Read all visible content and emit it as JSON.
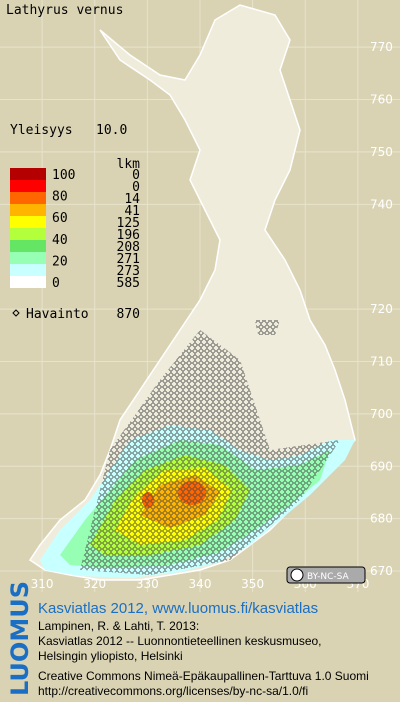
{
  "header": {
    "species": "Lathyrus vernus",
    "frequency_label": "Yleisyys",
    "frequency": "10.0"
  },
  "map": {
    "xlim": [
      302,
      378
    ],
    "ylim": [
      666,
      779
    ],
    "xticks": [
      310,
      320,
      330,
      340,
      350,
      360,
      370
    ],
    "yticks": [
      670,
      680,
      690,
      700,
      710,
      720,
      740,
      750,
      760,
      770
    ]
  },
  "legend": {
    "scale_labels": [
      "100",
      "80",
      "60",
      "40",
      "20",
      "0"
    ],
    "count_header": "lkm",
    "classes": [
      {
        "color": "#b40000",
        "count": 0
      },
      {
        "color": "#ff0000",
        "count": 0
      },
      {
        "color": "#ff6600",
        "count": 14
      },
      {
        "color": "#ffb400",
        "count": 41
      },
      {
        "color": "#ffff00",
        "count": 125
      },
      {
        "color": "#b4ff3c",
        "count": 196
      },
      {
        "color": "#64e664",
        "count": 208
      },
      {
        "color": "#96ffb4",
        "count": 271
      },
      {
        "color": "#c8ffff",
        "count": 273
      },
      {
        "color": "#ffffff",
        "count": 585
      }
    ],
    "observation_label": "Havainto",
    "observation_count": 870
  },
  "footer": {
    "logo": "LUOMUS",
    "license_badge": "BY-NC-SA",
    "atlas_link": "Kasviatlas 2012, www.luomus.fi/kasviatlas",
    "citation": [
      "Lampinen, R. & Lahti, T. 2013:",
      "Kasviatlas 2012 -- Luonnontieteellinen keskusmuseo,",
      "Helsingin yliopisto, Helsinki"
    ],
    "license": [
      "Creative Commons Nimeä-Epäkaupallinen-Tarttuva 1.0 Suomi",
      "http://creativecommons.org/licenses/by-nc-sa/1.0/fi"
    ]
  }
}
